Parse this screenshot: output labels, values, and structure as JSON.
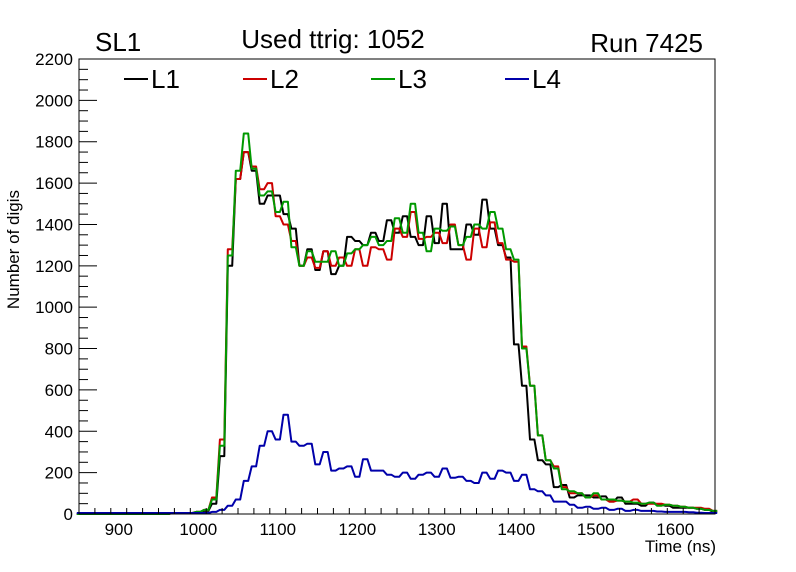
{
  "chart_data": {
    "type": "line",
    "title": "Used ttrig: 1052",
    "left_label": "SL1",
    "right_label": "Run 7425",
    "xlabel": "Time (ns)",
    "ylabel": "Number of digis",
    "xlim": [
      850,
      1650
    ],
    "ylim": [
      0,
      2200
    ],
    "x_ticks": [
      900,
      1000,
      1100,
      1200,
      1300,
      1400,
      1500,
      1600
    ],
    "y_ticks": [
      0,
      200,
      400,
      600,
      800,
      1000,
      1200,
      1400,
      1600,
      1800,
      2000,
      2200
    ],
    "grid": false,
    "legend_position": "top",
    "x": [
      850,
      860,
      870,
      880,
      890,
      900,
      910,
      920,
      930,
      940,
      950,
      960,
      970,
      980,
      990,
      1000,
      1010,
      1020,
      1030,
      1040,
      1050,
      1060,
      1070,
      1080,
      1090,
      1100,
      1110,
      1120,
      1130,
      1140,
      1150,
      1160,
      1170,
      1180,
      1190,
      1200,
      1210,
      1220,
      1230,
      1240,
      1250,
      1260,
      1270,
      1280,
      1290,
      1300,
      1310,
      1320,
      1330,
      1340,
      1350,
      1360,
      1370,
      1380,
      1390,
      1400,
      1410,
      1420,
      1430,
      1440,
      1450,
      1460,
      1470,
      1480,
      1490,
      1500,
      1510,
      1520,
      1530,
      1540,
      1550,
      1560,
      1570,
      1580,
      1590,
      1600,
      1610,
      1620,
      1630,
      1640,
      1650
    ],
    "series": [
      {
        "name": "L1",
        "color": "#000000",
        "values": [
          0,
          0,
          0,
          0,
          0,
          0,
          0,
          0,
          0,
          0,
          0,
          0,
          5,
          5,
          5,
          10,
          15,
          50,
          280,
          1200,
          1620,
          1750,
          1660,
          1500,
          1540,
          1540,
          1450,
          1380,
          1200,
          1280,
          1180,
          1270,
          1160,
          1200,
          1340,
          1320,
          1300,
          1360,
          1320,
          1420,
          1360,
          1440,
          1340,
          1300,
          1440,
          1310,
          1500,
          1280,
          1280,
          1400,
          1350,
          1520,
          1380,
          1300,
          1240,
          820,
          620,
          360,
          260,
          240,
          130,
          140,
          80,
          90,
          90,
          80,
          85,
          60,
          80,
          50,
          50,
          40,
          55,
          45,
          40,
          30,
          30,
          30,
          25,
          20,
          10
        ]
      },
      {
        "name": "L2",
        "color": "#cc0000",
        "values": [
          0,
          0,
          0,
          0,
          0,
          0,
          0,
          0,
          0,
          0,
          0,
          0,
          5,
          5,
          5,
          10,
          20,
          80,
          360,
          1280,
          1620,
          1750,
          1680,
          1570,
          1600,
          1440,
          1400,
          1320,
          1200,
          1240,
          1190,
          1270,
          1200,
          1240,
          1200,
          1280,
          1200,
          1290,
          1280,
          1230,
          1380,
          1340,
          1460,
          1330,
          1340,
          1360,
          1310,
          1400,
          1300,
          1230,
          1380,
          1290,
          1410,
          1310,
          1230,
          1220,
          810,
          620,
          380,
          260,
          230,
          130,
          100,
          100,
          80,
          90,
          70,
          60,
          65,
          60,
          70,
          50,
          50,
          50,
          45,
          40,
          35,
          30,
          30,
          25,
          15
        ]
      },
      {
        "name": "L3",
        "color": "#009900",
        "values": [
          0,
          0,
          0,
          0,
          0,
          0,
          0,
          0,
          0,
          0,
          0,
          0,
          5,
          5,
          5,
          10,
          20,
          70,
          330,
          1250,
          1660,
          1840,
          1670,
          1540,
          1560,
          1460,
          1510,
          1290,
          1200,
          1270,
          1220,
          1220,
          1270,
          1200,
          1260,
          1280,
          1300,
          1340,
          1300,
          1320,
          1430,
          1360,
          1500,
          1360,
          1270,
          1380,
          1370,
          1390,
          1300,
          1340,
          1400,
          1380,
          1460,
          1380,
          1280,
          1230,
          800,
          620,
          380,
          260,
          220,
          120,
          110,
          100,
          80,
          100,
          70,
          70,
          65,
          60,
          55,
          50,
          55,
          40,
          45,
          40,
          35,
          30,
          25,
          20,
          15
        ]
      },
      {
        "name": "L4",
        "color": "#0000aa",
        "values": [
          5,
          5,
          5,
          5,
          5,
          5,
          5,
          5,
          5,
          5,
          5,
          5,
          5,
          5,
          5,
          5,
          5,
          10,
          20,
          40,
          70,
          160,
          230,
          330,
          400,
          360,
          480,
          350,
          330,
          340,
          240,
          300,
          210,
          220,
          230,
          180,
          265,
          210,
          210,
          190,
          180,
          200,
          170,
          190,
          200,
          180,
          220,
          175,
          180,
          160,
          150,
          200,
          170,
          210,
          200,
          160,
          190,
          120,
          110,
          90,
          60,
          60,
          45,
          30,
          35,
          25,
          30,
          20,
          25,
          15,
          20,
          15,
          15,
          12,
          10,
          10,
          10,
          8,
          6,
          5,
          5
        ]
      }
    ]
  }
}
